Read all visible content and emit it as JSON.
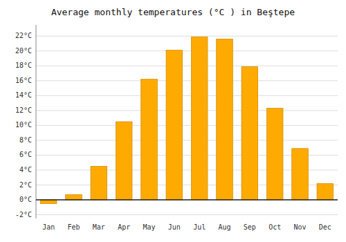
{
  "chart_data": {
    "type": "bar",
    "title": "Average monthly temperatures (°C ) in Beştepe",
    "categories": [
      "Jan",
      "Feb",
      "Mar",
      "Apr",
      "May",
      "Jun",
      "Jul",
      "Aug",
      "Sep",
      "Oct",
      "Nov",
      "Dec"
    ],
    "values": [
      -0.5,
      0.7,
      4.5,
      10.5,
      16.2,
      20.1,
      21.9,
      21.6,
      17.9,
      12.3,
      6.9,
      2.2
    ],
    "color": "#FFAA00",
    "ylim": [
      -2.5,
      23.5
    ],
    "yticks": [
      {
        "value": -2,
        "label": "-2°C"
      },
      {
        "value": 0,
        "label": "0°C"
      },
      {
        "value": 2,
        "label": "2°C"
      },
      {
        "value": 4,
        "label": "4°C"
      },
      {
        "value": 6,
        "label": "6°C"
      },
      {
        "value": 8,
        "label": "8°C"
      },
      {
        "value": 10,
        "label": "10°C"
      },
      {
        "value": 12,
        "label": "12°C"
      },
      {
        "value": 14,
        "label": "14°C"
      },
      {
        "value": 16,
        "label": "16°C"
      },
      {
        "value": 18,
        "label": "18°C"
      },
      {
        "value": 20,
        "label": "20°C"
      },
      {
        "value": 22,
        "label": "22°C"
      }
    ],
    "grid": true
  }
}
